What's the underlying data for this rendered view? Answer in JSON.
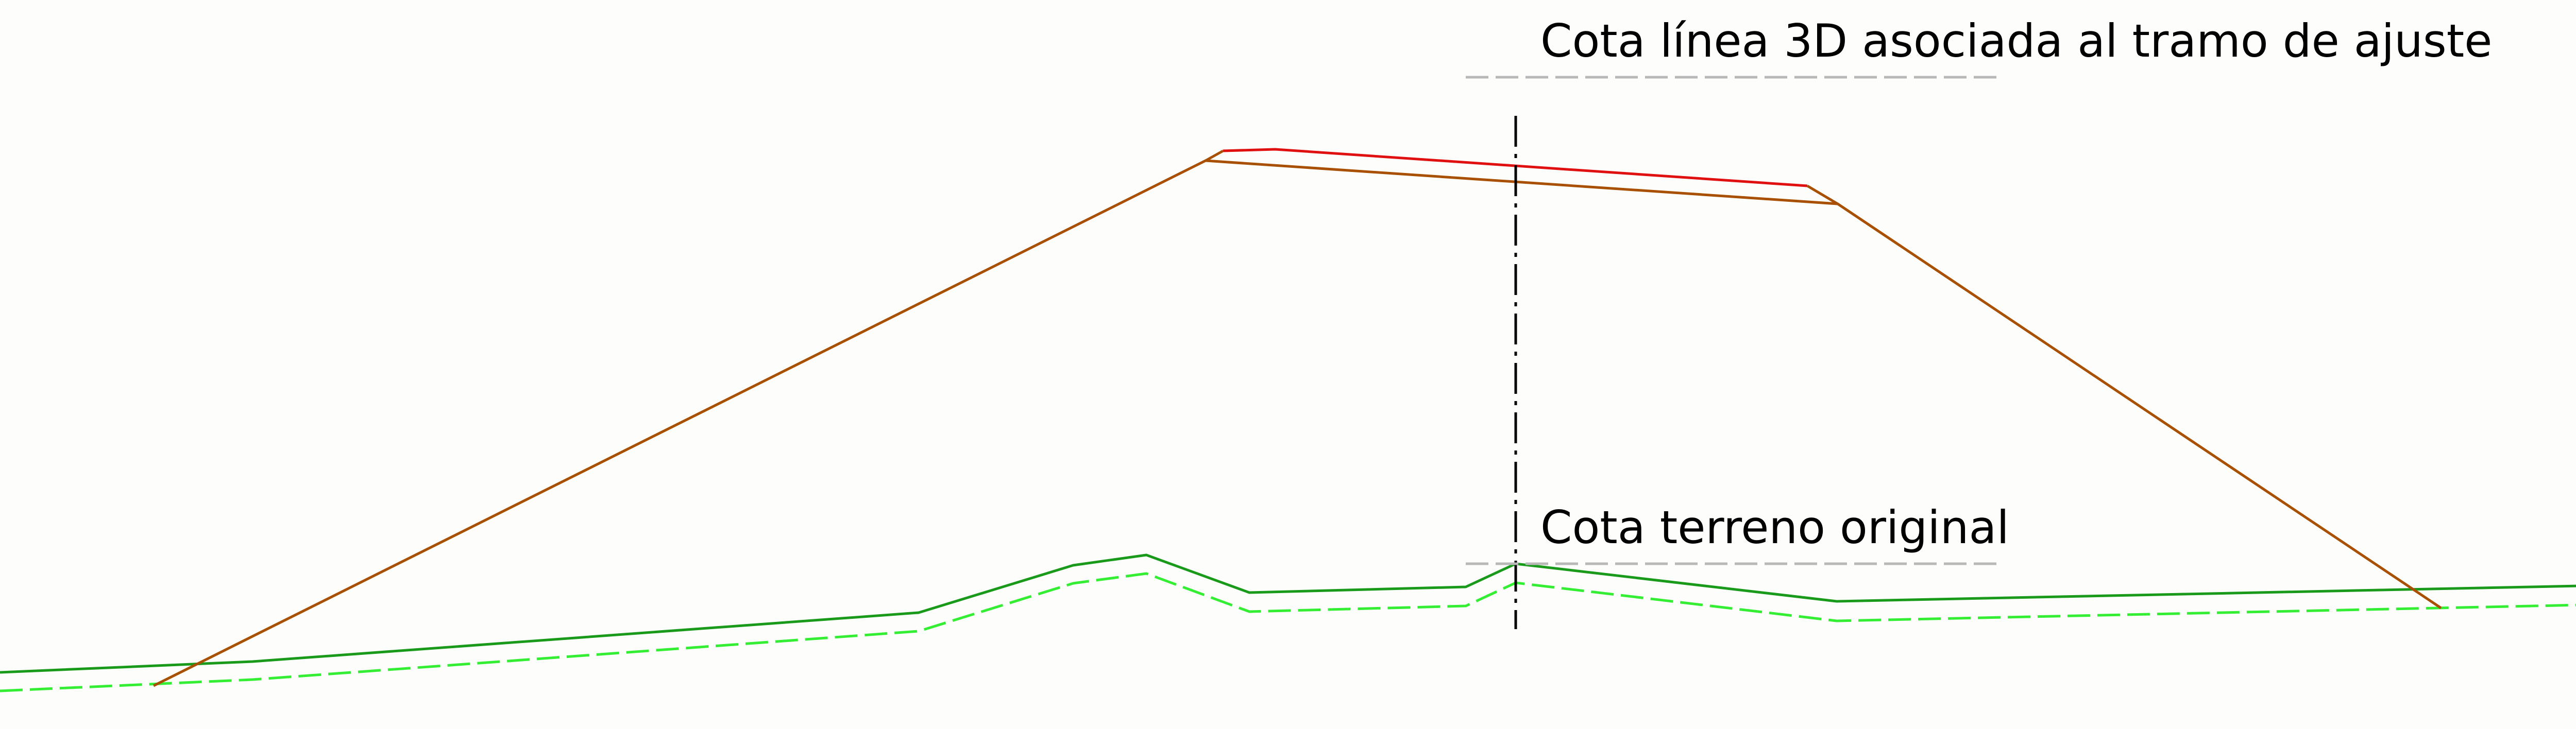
{
  "labels": {
    "top": "Cota línea 3D asociada al tramo de ajuste",
    "bottom": "Cota terreno original"
  },
  "colors": {
    "background": "#fdfdfb",
    "line_3d": "#e01010",
    "embankment": "#a85000",
    "terrain": "#1a9a1a",
    "terrain_offset": "#33ee33",
    "axis": "#000000",
    "leader": "#b8b8b8",
    "text": "#000000"
  }
}
